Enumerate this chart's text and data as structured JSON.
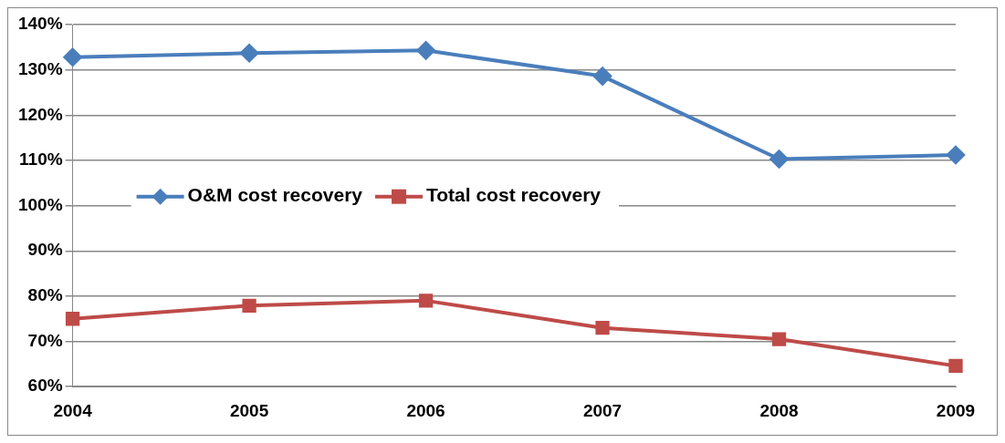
{
  "chart_data": {
    "type": "line",
    "categories": [
      "2004",
      "2005",
      "2006",
      "2007",
      "2008",
      "2009"
    ],
    "series": [
      {
        "name": "O&M cost recovery",
        "color": "#4a7ebb",
        "marker": "diamond",
        "values": [
          132.8,
          133.7,
          134.3,
          128.6,
          110.3,
          111.2
        ]
      },
      {
        "name": "Total cost recovery",
        "color": "#be4b48",
        "marker": "square",
        "values": [
          75,
          77.9,
          79,
          73,
          70.5,
          64.6
        ]
      }
    ],
    "ylim": [
      60,
      140
    ],
    "yticks": [
      {
        "value": 60,
        "label": "60%"
      },
      {
        "value": 70,
        "label": "70%"
      },
      {
        "value": 80,
        "label": "80%"
      },
      {
        "value": 90,
        "label": "90%"
      },
      {
        "value": 100,
        "label": "100%"
      },
      {
        "value": 110,
        "label": "110%"
      },
      {
        "value": 120,
        "label": "120%"
      },
      {
        "value": 130,
        "label": "130%"
      },
      {
        "value": 140,
        "label": "140%"
      }
    ],
    "grid": "y",
    "legend": "center left"
  }
}
